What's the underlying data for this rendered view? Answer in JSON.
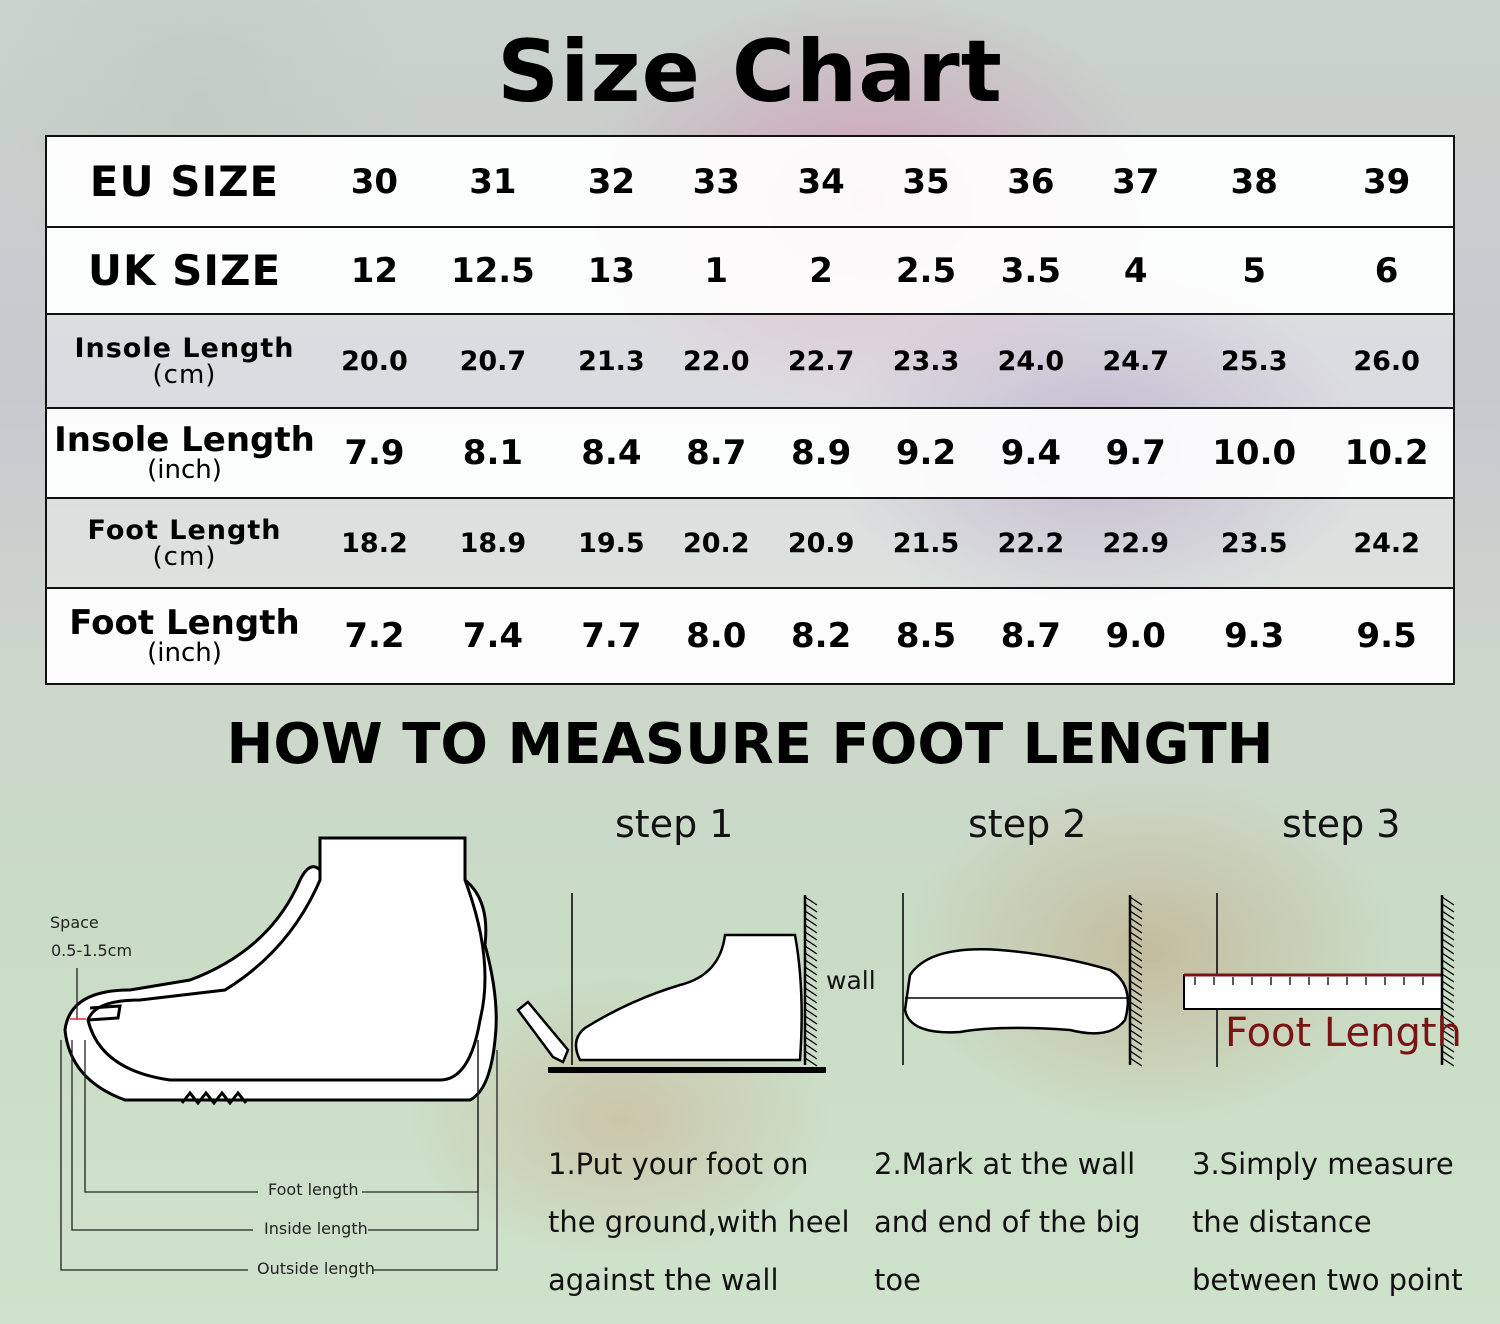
{
  "title": "Size Chart",
  "table": {
    "rows": [
      {
        "label": "EU SIZE",
        "unit": "",
        "values": [
          "30",
          "31",
          "32",
          "33",
          "34",
          "35",
          "36",
          "37",
          "38",
          "39"
        ]
      },
      {
        "label": "UK SIZE",
        "unit": "",
        "values": [
          "12",
          "12.5",
          "13",
          "1",
          "2",
          "2.5",
          "3.5",
          "4",
          "5",
          "6"
        ]
      },
      {
        "label": "Insole Length",
        "unit": "(cm)",
        "values": [
          "20.0",
          "20.7",
          "21.3",
          "22.0",
          "22.7",
          "23.3",
          "24.0",
          "24.7",
          "25.3",
          "26.0"
        ]
      },
      {
        "label": "Insole Length",
        "unit": "(inch)",
        "values": [
          "7.9",
          "8.1",
          "8.4",
          "8.7",
          "8.9",
          "9.2",
          "9.4",
          "9.7",
          "10.0",
          "10.2"
        ]
      },
      {
        "label": "Foot Length",
        "unit": "(cm)",
        "values": [
          "18.2",
          "18.9",
          "19.5",
          "20.2",
          "20.9",
          "21.5",
          "22.2",
          "22.9",
          "23.5",
          "24.2"
        ]
      },
      {
        "label": "Foot Length",
        "unit": "(inch)",
        "values": [
          "7.2",
          "7.4",
          "7.7",
          "8.0",
          "8.2",
          "8.5",
          "8.7",
          "9.0",
          "9.3",
          "9.5"
        ]
      }
    ]
  },
  "measure": {
    "heading": "HOW TO MEASURE FOOT LENGTH",
    "diagram": {
      "space_label": "Space",
      "space_value": "0.5-1.5cm",
      "foot_length": "Foot length",
      "inside_length": "Inside length",
      "outside_length": "Outside length"
    },
    "steps": [
      {
        "label": "step 1",
        "line1": "1.Put your foot on",
        "line2": "the ground,with heel",
        "line3": "against the wall",
        "wall": "wall"
      },
      {
        "label": "step 2",
        "line1": "2.Mark at the wall",
        "line2": "and end of the big",
        "line3": "toe"
      },
      {
        "label": "step 3",
        "line1": "3.Simply measure",
        "line2": "the distance",
        "line3": "between two point",
        "ruler_label": "Foot Length"
      }
    ]
  },
  "colors": {
    "ruler_label": "#7a1414"
  }
}
